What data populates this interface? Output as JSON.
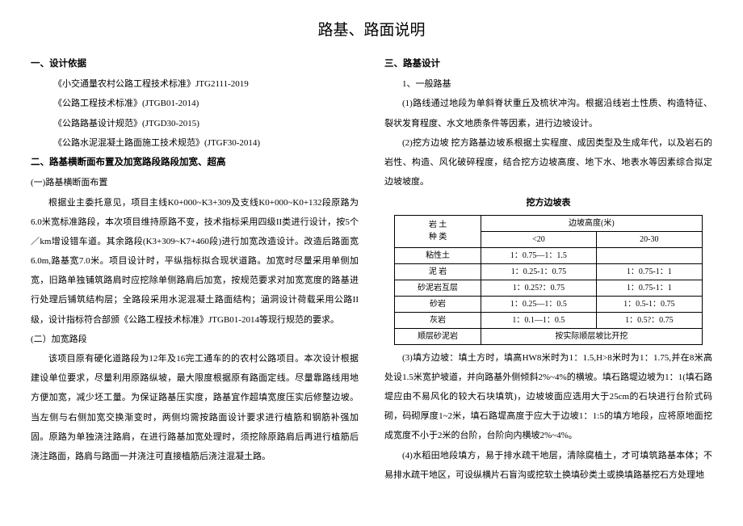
{
  "title": "路基、路面说明",
  "left": {
    "s1_title": "一、设计依据",
    "s1_items": [
      "《小交通量农村公路工程技术标准》JTG2111-2019",
      "《公路工程技术标准》(JTGB01-2014)",
      "《公路路基设计规范》(JTGD30-2015)",
      "《公路水泥混凝土路面施工技术规范》(JTGF30-2014)"
    ],
    "s2_title": "二、路基横断面布置及加宽路段路段加宽、超高",
    "s2_sub1": "(一)路基横断面布置",
    "s2_p1": "根据业主委托意见，项目主线K0+000~K3+309及支线K0+000~K0+132段原路为6.0米宽标准路段，本次项目维持原路不变，技术指标采用四级II类进行设计，按5个／km增设错车道。其余路段(K3+309~K7+460段)进行加宽改造设计。改造后路面宽6.0m,路基宽7.0米。项目设计时，平纵指标拟合现状道路。加宽时尽量采用单侧加宽，旧路单独铺筑路肩时应挖除单侧路肩后加宽，按规范要求对加宽宽度的路基进行处理后铺筑结构层；全路段采用水泥混凝土路面结构；涵洞设计荷载采用公路II级，设计指标符合部颁《公路工程技术标准》JTGB01-2014等现行规范的要求。",
    "s2_sub2": "(二）加宽路段",
    "s2_p2": "该项目原有硬化道路段为12年及16完工通车的的农村公路项目。本次设计根据建设单位要求，尽量利用原路纵坡，最大限度根据原有路面定线。尽量靠路线用地方便加宽，减少坯工量。为保证路基压实度，路基宜作超填宽度压实后修整边坡。当左侧与右侧加宽交换渐变时，两侧均需按路面设计要求进行植筋和钢筋补强加固。原路为单独浇注路肩，在进行路基加宽处理时，须挖除原路肩后再进行植筋后浇注路面，路肩与路面一并浇注可直接植筋后浇注混凝土路。"
  },
  "right": {
    "s3_title": "三、路基设计",
    "s3_sub1": "1、一般路基",
    "s3_p1": "(1)路线通过地段为单斜脊状重丘及梳状冲沟。根据沿线岩土性质、构造特征、裂状发育程度、水文地质条件等因素，进行边坡设计。",
    "s3_p2": "(2)挖方边坡 挖方路基边坡系根据土实程度、成因类型及生成年代，以及岩石的岩性、构造、风化破碎程度，结合挖方边坡高度、地下水、地表水等因素综合拟定边坡坡度。",
    "table_title": "挖方边坡表",
    "table": {
      "head_col0_l1": "岩        土",
      "head_col0_l2": "种            类",
      "head_span": "边坡高度(米)",
      "head_c1": "<20",
      "head_c2": "20-30",
      "rows": [
        [
          "粘性土",
          "1：0.75—1：1.5",
          ""
        ],
        [
          "泥        岩",
          "1：0.25-1：0.75",
          "1：0.75-1：1"
        ],
        [
          "砂泥岩互层",
          "1：0.25?：0.75",
          "1：0.75-1：1"
        ],
        [
          "砂岩",
          "1：0.25—1：0.5",
          "1：0.5-1：0.75"
        ],
        [
          "灰岩",
          "1：0.1—1：0.5",
          "1：0.5?：0.75"
        ],
        [
          "顺层砂泥岩",
          "按实际顺层坡比开挖",
          ""
        ]
      ]
    },
    "s3_p3": "(3)填方边坡：填土方时，填高HW8米时为1：1.5,H>8米时为1：1.75,并在8米高处设1.5米宽护坡道，并向路基外侧倾斜2%~4%的横坡。填石路堤边坡为1：1(填石路堤应由不易风化的较大石块填筑)，边坡坡面应选用大于25cm的石块进行台阶式码砌，码砌厚度1~2米，填石路堤高度于应大于边坡1：1:5的填方地段，应将原地面挖成宽度不小于2米的台阶，台阶向内横坡2%~4%。",
    "s3_p4": "(4)水稻田地段填方，易于排水疏干地层，清除腐植土，才可填筑路基本体；不易排水疏干地区，可设纵横片石盲沟或挖软土换填砂类土或换填路基挖石方处理地"
  }
}
